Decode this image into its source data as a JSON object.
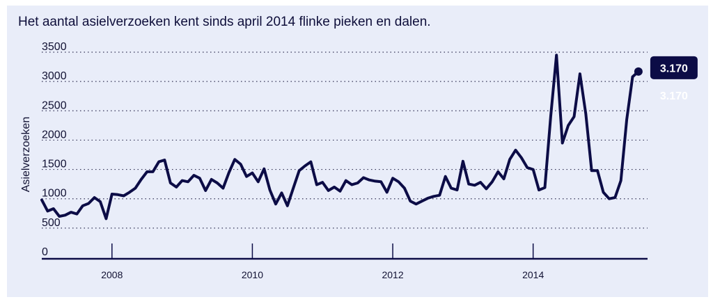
{
  "chart_data": {
    "type": "line",
    "title": "Het aantal asielverzoeken kent sinds april 2014 flinke pieken en dalen.",
    "xlabel": "",
    "ylabel": "Asielverzoeken",
    "ylim": [
      0,
      3500
    ],
    "xlim": [
      2007.0,
      2015.63
    ],
    "yticks": [
      0,
      500,
      1000,
      1500,
      2000,
      2500,
      3000,
      3500
    ],
    "ytick_labels": [
      "0",
      "500",
      "1000",
      "1500",
      "2000",
      "2500",
      "3000",
      "3500"
    ],
    "xticks": [
      2008,
      2010,
      2012,
      2014
    ],
    "xtick_labels": [
      "2008",
      "2010",
      "2012",
      "2014"
    ],
    "grid": true,
    "series": [
      {
        "name": "Asielverzoeken",
        "color": "#0c0c46",
        "x": [
          2007.0,
          2007.083,
          2007.167,
          2007.25,
          2007.333,
          2007.417,
          2007.5,
          2007.583,
          2007.667,
          2007.75,
          2007.833,
          2007.917,
          2008.0,
          2008.083,
          2008.167,
          2008.25,
          2008.333,
          2008.417,
          2008.5,
          2008.583,
          2008.667,
          2008.75,
          2008.833,
          2008.917,
          2009.0,
          2009.083,
          2009.167,
          2009.25,
          2009.333,
          2009.417,
          2009.5,
          2009.583,
          2009.667,
          2009.75,
          2009.833,
          2009.917,
          2010.0,
          2010.083,
          2010.167,
          2010.25,
          2010.333,
          2010.417,
          2010.5,
          2010.583,
          2010.667,
          2010.75,
          2010.833,
          2010.917,
          2011.0,
          2011.083,
          2011.167,
          2011.25,
          2011.333,
          2011.417,
          2011.5,
          2011.583,
          2011.667,
          2011.75,
          2011.833,
          2011.917,
          2012.0,
          2012.083,
          2012.167,
          2012.25,
          2012.333,
          2012.417,
          2012.5,
          2012.583,
          2012.667,
          2012.75,
          2012.833,
          2012.917,
          2013.0,
          2013.083,
          2013.167,
          2013.25,
          2013.333,
          2013.417,
          2013.5,
          2013.583,
          2013.667,
          2013.75,
          2013.833,
          2013.917,
          2014.0,
          2014.083,
          2014.167,
          2014.25,
          2014.333,
          2014.417,
          2014.5,
          2014.583,
          2014.667,
          2014.75,
          2014.833,
          2014.917,
          2015.0,
          2015.083,
          2015.167,
          2015.25,
          2015.333,
          2015.417,
          2015.5
        ],
        "values": [
          980,
          790,
          830,
          700,
          720,
          770,
          740,
          880,
          920,
          1020,
          950,
          660,
          1080,
          1070,
          1050,
          1110,
          1180,
          1330,
          1460,
          1460,
          1630,
          1660,
          1270,
          1200,
          1310,
          1290,
          1400,
          1350,
          1140,
          1330,
          1270,
          1180,
          1450,
          1670,
          1590,
          1380,
          1440,
          1290,
          1510,
          1150,
          910,
          1100,
          880,
          1180,
          1480,
          1560,
          1630,
          1240,
          1280,
          1140,
          1200,
          1130,
          1310,
          1240,
          1270,
          1360,
          1320,
          1300,
          1290,
          1110,
          1350,
          1290,
          1180,
          960,
          910,
          960,
          1010,
          1040,
          1060,
          1380,
          1180,
          1150,
          1640,
          1250,
          1230,
          1280,
          1170,
          1290,
          1460,
          1340,
          1670,
          1830,
          1700,
          1530,
          1500,
          1150,
          1190,
          2400,
          3450,
          1950,
          2250,
          2400,
          3130,
          2450,
          1480,
          1480,
          1110,
          1000,
          1020,
          1310,
          2350,
          3080,
          3170
        ]
      }
    ],
    "annotations": [
      {
        "label": "3.170",
        "x": 2015.5,
        "y": 3170,
        "style": "badge"
      },
      {
        "label": "3.170",
        "x": 2015.5,
        "y": 3170,
        "style": "ghost"
      }
    ]
  }
}
